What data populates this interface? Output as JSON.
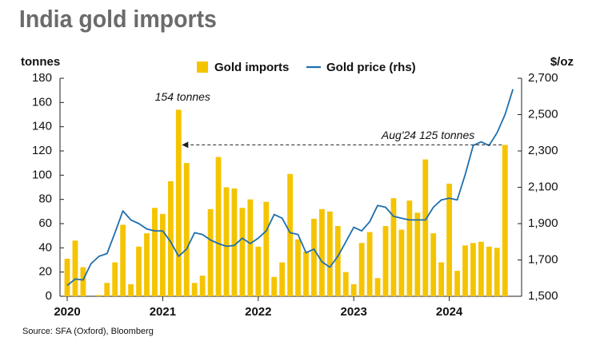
{
  "chart_data": {
    "type": "bar-line",
    "title": "India gold imports",
    "y_label": "tonnes",
    "y2_label": "$/oz",
    "source": "Source: SFA (Oxford), Bloomberg",
    "categories": [
      "2020",
      null,
      null,
      null,
      null,
      null,
      null,
      null,
      null,
      null,
      null,
      null,
      "2021",
      null,
      null,
      null,
      null,
      null,
      null,
      null,
      null,
      null,
      null,
      null,
      "2022",
      null,
      null,
      null,
      null,
      null,
      null,
      null,
      null,
      null,
      null,
      null,
      "2023",
      null,
      null,
      null,
      null,
      null,
      null,
      null,
      null,
      null,
      null,
      null,
      "2024",
      null,
      null,
      null,
      null,
      null,
      null,
      null,
      null
    ],
    "series": [
      {
        "name": "Gold imports",
        "type": "bar",
        "color": "#f5c400",
        "values": [
          31,
          46,
          24,
          0,
          1,
          11,
          28,
          59,
          10,
          41,
          52,
          73,
          68,
          95,
          154,
          110,
          11,
          17,
          72,
          115,
          90,
          89,
          73,
          80,
          41,
          78,
          16,
          28,
          101,
          47,
          37,
          64,
          72,
          70,
          58,
          20,
          10,
          44,
          53,
          15,
          58,
          81,
          55,
          79,
          69,
          113,
          52,
          28,
          93,
          21,
          42,
          44,
          45,
          41,
          40,
          125,
          null
        ]
      },
      {
        "name": "Gold price (rhs)",
        "type": "line",
        "axis": "y2",
        "color": "#1f6fae",
        "values": [
          1560,
          1595,
          1590,
          1680,
          1720,
          1735,
          1850,
          1970,
          1920,
          1900,
          1870,
          1860,
          1860,
          1800,
          1720,
          1760,
          1850,
          1840,
          1810,
          1790,
          1775,
          1780,
          1820,
          1790,
          1820,
          1860,
          1950,
          1930,
          1850,
          1840,
          1740,
          1760,
          1690,
          1660,
          1720,
          1800,
          1880,
          1860,
          1910,
          2000,
          1990,
          1940,
          1930,
          1920,
          1920,
          1920,
          1990,
          2030,
          2040,
          2030,
          2170,
          2330,
          2350,
          2330,
          2400,
          2500,
          2640
        ]
      }
    ],
    "ylim": [
      0,
      180
    ],
    "yticks": [
      0,
      20,
      40,
      60,
      80,
      100,
      120,
      140,
      160,
      180
    ],
    "y2lim": [
      1500,
      2700
    ],
    "y2ticks": [
      {
        "value": 1500,
        "label": "1,500"
      },
      {
        "value": 1700,
        "label": "1,700"
      },
      {
        "value": 1900,
        "label": "1,900"
      },
      {
        "value": 2100,
        "label": "2,100"
      },
      {
        "value": 2300,
        "label": "2,300"
      },
      {
        "value": 2500,
        "label": "2,500"
      },
      {
        "value": 2700,
        "label": "2,700"
      }
    ],
    "annotations": [
      "154 tonnes",
      "Aug'24 125 tonnes"
    ],
    "grid": false
  }
}
